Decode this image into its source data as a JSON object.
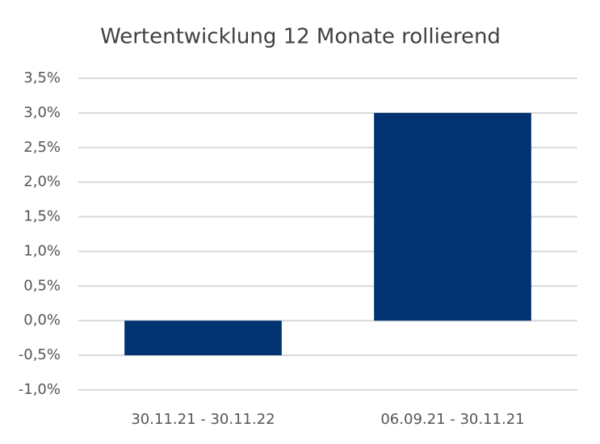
{
  "chart_data": {
    "type": "bar",
    "title": "Wertentwicklung 12 Monate rollierend",
    "categories": [
      "30.11.21 - 30.11.22",
      "06.09.21 - 30.11.21"
    ],
    "values": [
      -0.5,
      3.0
    ],
    "color": "#003370",
    "ylim": [
      -1.0,
      3.5
    ],
    "yticks": [
      {
        "value": -1.0,
        "label": "-1,0%"
      },
      {
        "value": -0.5,
        "label": "-0,5%"
      },
      {
        "value": 0.0,
        "label": "0,0%"
      },
      {
        "value": 0.5,
        "label": "0,5%"
      },
      {
        "value": 1.0,
        "label": "1,0%"
      },
      {
        "value": 1.5,
        "label": "1,5%"
      },
      {
        "value": 2.0,
        "label": "2,0%"
      },
      {
        "value": 2.5,
        "label": "2,5%"
      },
      {
        "value": 3.0,
        "label": "3,0%"
      },
      {
        "value": 3.5,
        "label": "3,5%"
      }
    ],
    "grid": true
  }
}
